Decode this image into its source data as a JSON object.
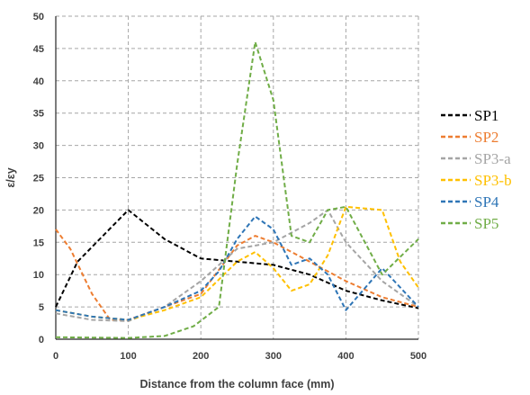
{
  "chart_data": {
    "type": "line",
    "xlabel": "Distance from the column face (mm)",
    "ylabel": "ε/εy",
    "xlim": [
      0,
      500
    ],
    "ylim": [
      0,
      50
    ],
    "xticks": [
      "0",
      "100",
      "200",
      "300",
      "400",
      "500"
    ],
    "yticks": [
      "0",
      "5",
      "10",
      "15",
      "20",
      "25",
      "30",
      "35",
      "40",
      "45",
      "50"
    ],
    "grid": true,
    "legend_position": "right",
    "series": [
      {
        "name": "SP1",
        "color": "#000000",
        "x": [
          0,
          30,
          100,
          150,
          200,
          250,
          300,
          350,
          400,
          450,
          500
        ],
        "y": [
          5,
          12,
          20,
          15.5,
          12.5,
          12,
          11.5,
          10,
          7.5,
          6,
          4.8
        ]
      },
      {
        "name": "SP2",
        "color": "#ED7D31",
        "x": [
          0,
          20,
          50,
          75,
          100,
          150,
          200,
          250,
          275,
          300,
          350,
          400,
          450,
          500
        ],
        "y": [
          17,
          14,
          7,
          3,
          3,
          5,
          7,
          14.5,
          16,
          15,
          12,
          9,
          6.5,
          5
        ]
      },
      {
        "name": "SP3-a",
        "color": "#A5A5A5",
        "x": [
          0,
          50,
          100,
          150,
          200,
          250,
          300,
          350,
          375,
          400,
          450,
          500
        ],
        "y": [
          4,
          3,
          2.8,
          5,
          9,
          14,
          15,
          18,
          20,
          15,
          9,
          5
        ]
      },
      {
        "name": "SP3-b",
        "color": "#FFC000",
        "x": [
          0,
          50,
          100,
          150,
          200,
          250,
          275,
          300,
          325,
          350,
          375,
          400,
          450,
          475,
          500
        ],
        "y": [
          4.5,
          3.5,
          3,
          4.5,
          6.5,
          12,
          13.5,
          11,
          7.5,
          8.5,
          13,
          20.5,
          20,
          12,
          8
        ]
      },
      {
        "name": "SP4",
        "color": "#2E75B6",
        "x": [
          0,
          50,
          100,
          150,
          200,
          225,
          250,
          275,
          300,
          325,
          350,
          375,
          400,
          450,
          500
        ],
        "y": [
          4.5,
          3.5,
          3,
          5,
          7.5,
          10.5,
          15.5,
          19,
          17,
          11.5,
          12.5,
          10,
          4.5,
          11,
          5
        ]
      },
      {
        "name": "SP5",
        "color": "#70AD47",
        "x": [
          0,
          100,
          150,
          190,
          225,
          250,
          275,
          300,
          325,
          350,
          375,
          400,
          450,
          500
        ],
        "y": [
          0.3,
          0.2,
          0.5,
          2,
          5,
          27,
          46,
          37,
          16,
          15,
          20,
          20.5,
          10,
          15.5
        ]
      }
    ]
  }
}
